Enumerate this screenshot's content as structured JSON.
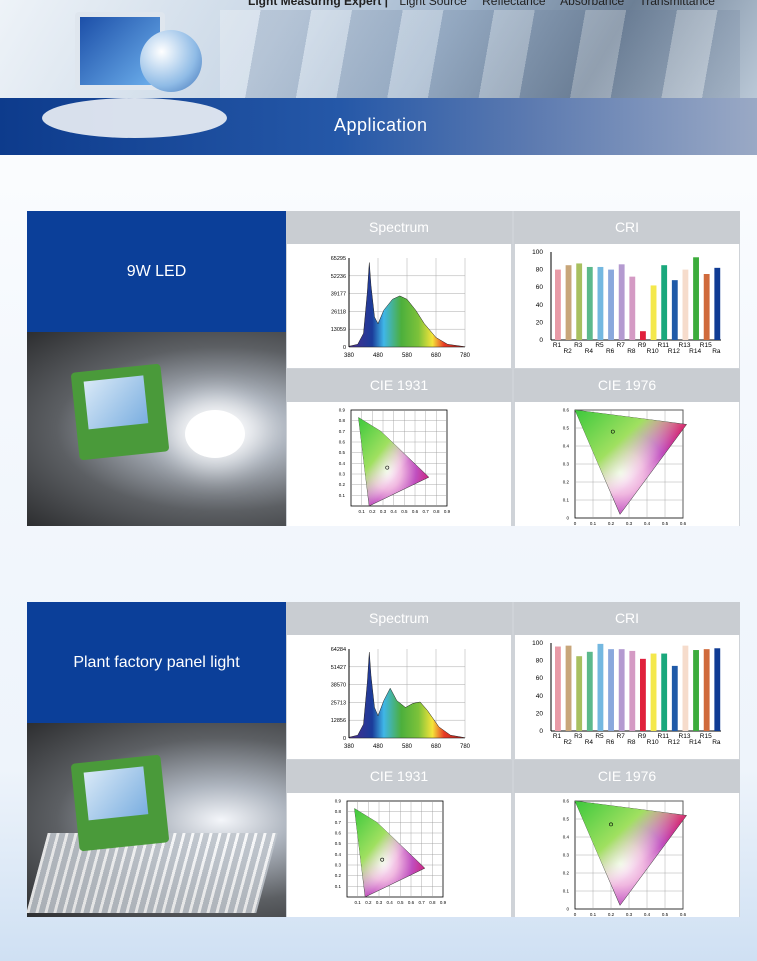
{
  "header": {
    "brand": "Light Measuring Expert |",
    "nav": [
      "Light Source",
      "Reflectance",
      "Absorbance",
      "Transmittance"
    ],
    "section_title": "Application"
  },
  "panel_titles": {
    "spectrum": "Spectrum",
    "cri": "CRI",
    "cie1931": "CIE 1931",
    "cie1976": "CIE 1976"
  },
  "sections": [
    {
      "title": "9W LED",
      "spectrum": {
        "type": "area",
        "xlim": [
          380,
          780
        ],
        "x_ticks": [
          "380",
          "480",
          "580",
          "680",
          "780"
        ],
        "y_ticks": [
          "65295",
          "52236",
          "39177",
          "26118",
          "13059",
          "0"
        ],
        "ylim": [
          0,
          65295
        ],
        "points": [
          [
            380,
            500
          ],
          [
            410,
            2000
          ],
          [
            430,
            10000
          ],
          [
            443,
            40000
          ],
          [
            450,
            62000
          ],
          [
            456,
            45000
          ],
          [
            468,
            22000
          ],
          [
            480,
            17000
          ],
          [
            500,
            27000
          ],
          [
            530,
            35000
          ],
          [
            555,
            37500
          ],
          [
            580,
            35000
          ],
          [
            610,
            27000
          ],
          [
            640,
            17000
          ],
          [
            680,
            7000
          ],
          [
            720,
            2000
          ],
          [
            780,
            200
          ]
        ]
      },
      "cri": {
        "type": "bar",
        "categories": [
          "R1",
          "R2",
          "R3",
          "R4",
          "R5",
          "R6",
          "R7",
          "R8",
          "R9",
          "R10",
          "R11",
          "R12",
          "R13",
          "R14",
          "R15",
          "Ra"
        ],
        "values": [
          80,
          85,
          87,
          83,
          83,
          80,
          86,
          72,
          10,
          62,
          85,
          68,
          80,
          94,
          75,
          82
        ],
        "ylim": [
          0,
          100
        ],
        "y_ticks": [
          "0",
          "20",
          "40",
          "60",
          "80",
          "100"
        ]
      },
      "cie1931": {
        "x_ticks": [
          "0.1",
          "0.2",
          "0.3",
          "0.4",
          "0.5",
          "0.6",
          "0.7",
          "0.8",
          "0.9"
        ],
        "y_ticks": [
          "0.1",
          "0.2",
          "0.3",
          "0.4",
          "0.5",
          "0.6",
          "0.7",
          "0.8",
          "0.9"
        ],
        "point": [
          0.34,
          0.36
        ]
      },
      "cie1976": {
        "x_ticks": [
          "0",
          "0.1",
          "0.2",
          "0.3",
          "0.4",
          "0.5",
          "0.6"
        ],
        "y_ticks": [
          "0",
          "0.1",
          "0.2",
          "0.3",
          "0.4",
          "0.5",
          "0.6"
        ],
        "point": [
          0.21,
          0.48
        ]
      }
    },
    {
      "title": "Plant factory panel light",
      "spectrum": {
        "type": "area",
        "xlim": [
          380,
          780
        ],
        "x_ticks": [
          "380",
          "480",
          "580",
          "680",
          "780"
        ],
        "y_ticks": [
          "64284",
          "51427",
          "38570",
          "25713",
          "12856",
          "0"
        ],
        "ylim": [
          0,
          64284
        ],
        "points": [
          [
            380,
            500
          ],
          [
            410,
            2000
          ],
          [
            430,
            10000
          ],
          [
            443,
            40000
          ],
          [
            450,
            62000
          ],
          [
            456,
            45000
          ],
          [
            468,
            22000
          ],
          [
            480,
            16000
          ],
          [
            500,
            27000
          ],
          [
            522,
            36000
          ],
          [
            545,
            27000
          ],
          [
            575,
            22000
          ],
          [
            600,
            25000
          ],
          [
            625,
            26000
          ],
          [
            650,
            20000
          ],
          [
            690,
            8000
          ],
          [
            730,
            2000
          ],
          [
            780,
            200
          ]
        ]
      },
      "cri": {
        "type": "bar",
        "categories": [
          "R1",
          "R2",
          "R3",
          "R4",
          "R5",
          "R6",
          "R7",
          "R8",
          "R9",
          "R10",
          "R11",
          "R12",
          "R13",
          "R14",
          "R15",
          "Ra"
        ],
        "values": [
          96,
          97,
          85,
          90,
          99,
          93,
          93,
          91,
          82,
          88,
          88,
          74,
          97,
          92,
          93,
          94
        ],
        "ylim": [
          0,
          100
        ],
        "y_ticks": [
          "0",
          "20",
          "40",
          "60",
          "80",
          "100"
        ]
      },
      "cie1931": {
        "x_ticks": [
          "0.1",
          "0.2",
          "0.3",
          "0.4",
          "0.5",
          "0.6",
          "0.7",
          "0.8",
          "0.9"
        ],
        "y_ticks": [
          "0.1",
          "0.2",
          "0.3",
          "0.4",
          "0.5",
          "0.6",
          "0.7",
          "0.8",
          "0.9"
        ],
        "point": [
          0.33,
          0.35
        ]
      },
      "cie1976": {
        "x_ticks": [
          "0",
          "0.1",
          "0.2",
          "0.3",
          "0.4",
          "0.5",
          "0.6"
        ],
        "y_ticks": [
          "0",
          "0.1",
          "0.2",
          "0.3",
          "0.4",
          "0.5",
          "0.6"
        ],
        "point": [
          0.2,
          0.47
        ]
      }
    }
  ],
  "colors": {
    "label_bg": "#0b3f99",
    "header_gray": "#c9cdd2",
    "cri_bars": [
      "#e89aa6",
      "#c8a67a",
      "#a8c060",
      "#5cb98c",
      "#74b8e0",
      "#8aa8dc",
      "#b49ad0",
      "#d49ac4",
      "#e0203c",
      "#f4e84c",
      "#1aa87c",
      "#1f5aa8",
      "#f6dccc",
      "#3cac3c",
      "#d06a3c",
      "#103c94"
    ]
  }
}
